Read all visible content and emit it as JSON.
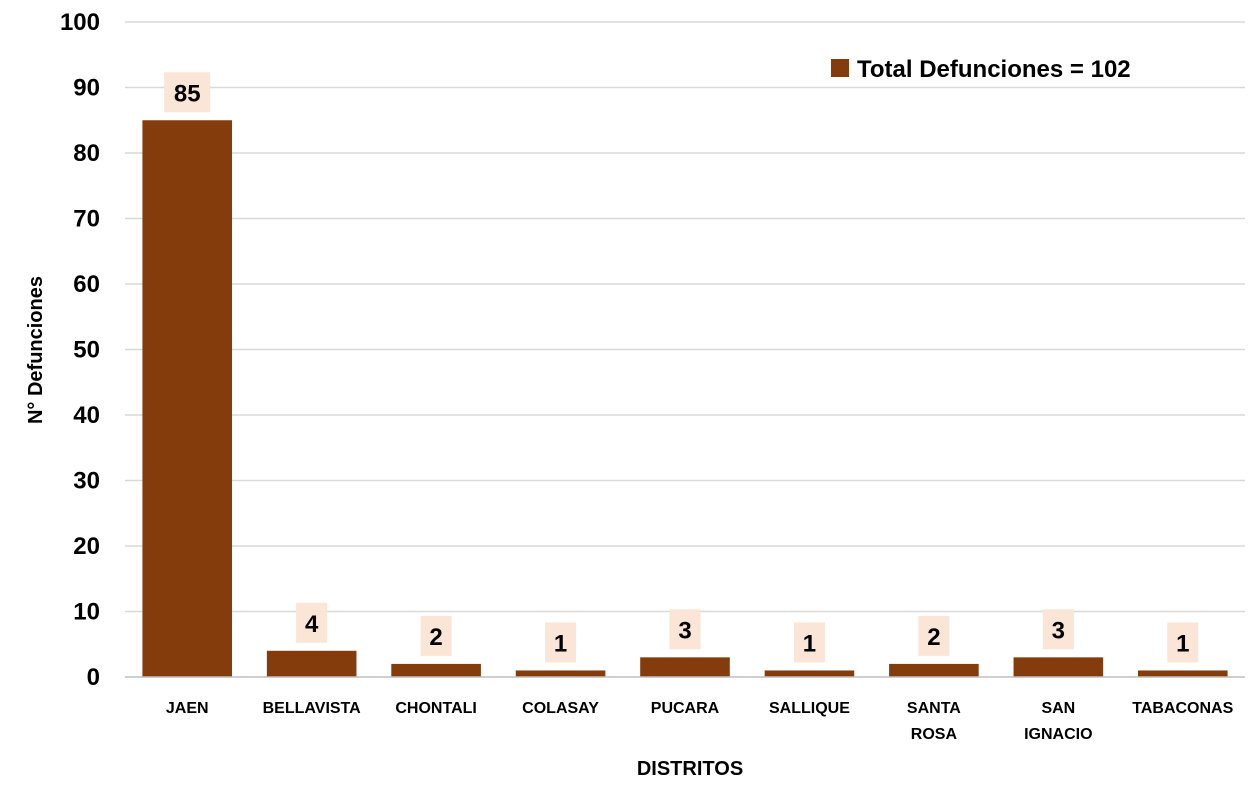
{
  "chart_data": {
    "type": "bar",
    "categories": [
      "JAEN",
      "BELLAVISTA",
      "CHONTALI",
      "COLASAY",
      "PUCARA",
      "SALLIQUE",
      "SANTA ROSA",
      "SAN IGNACIO",
      "TABACONAS"
    ],
    "series": [
      {
        "name": "Total Defunciones = 102",
        "values": [
          85,
          4,
          2,
          1,
          3,
          1,
          2,
          3,
          1
        ]
      }
    ],
    "data_labels": [
      "85",
      "4",
      "2",
      "1",
      "3",
      "1",
      "2",
      "3",
      "1"
    ],
    "xlabel": "DISTRITOS",
    "ylabel": "N° Defunciones",
    "ylim": [
      0,
      100
    ],
    "yticks": [
      0,
      10,
      20,
      30,
      40,
      50,
      60,
      70,
      80,
      90,
      100
    ],
    "grid": true,
    "legend_position": "top-right",
    "colors": {
      "bar": "#843C0C",
      "label_bg": "#FBE5D6",
      "grid": "#D9D9D9",
      "axis": "#BFBFBF"
    }
  }
}
